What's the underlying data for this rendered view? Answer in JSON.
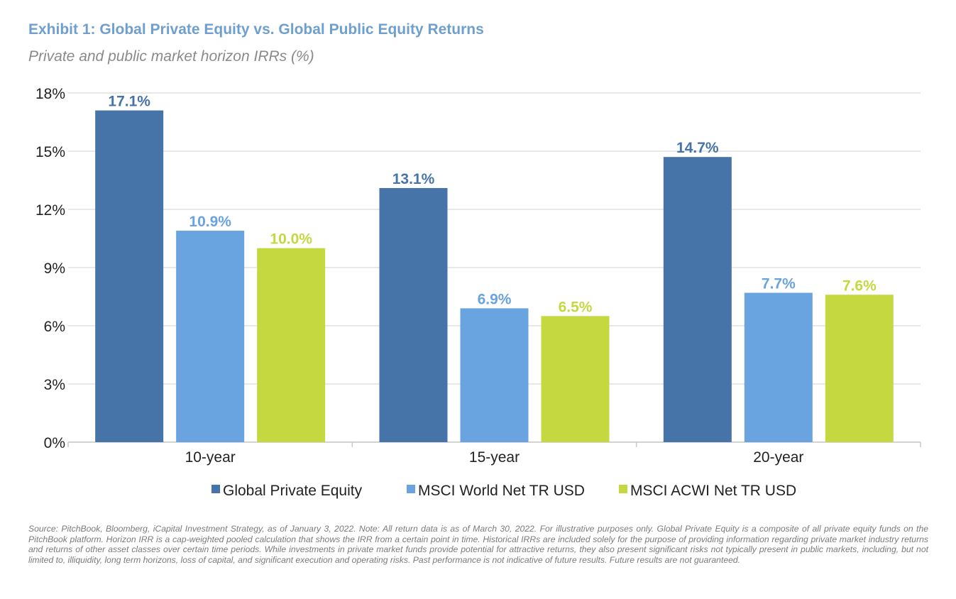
{
  "colors": {
    "title": "#6f9fcf",
    "series": [
      "#4674a8",
      "#69a3e0",
      "#c5d83f"
    ],
    "grid": "#d9d9d9",
    "axis_text": "#222222"
  },
  "chart_data": {
    "type": "bar",
    "title": "Exhibit 1: Global Private Equity vs. Global Public Equity Returns",
    "subtitle": "Private and public market horizon IRRs (%)",
    "xlabel": "",
    "ylabel": "",
    "categories": [
      "10-year",
      "15-year",
      "20-year"
    ],
    "series": [
      {
        "name": "Global Private Equity",
        "values": [
          17.1,
          13.1,
          14.7
        ],
        "labels": [
          "17.1%",
          "13.1%",
          "14.7%"
        ]
      },
      {
        "name": "MSCI World Net TR USD",
        "values": [
          10.9,
          6.9,
          7.7
        ],
        "labels": [
          "10.9%",
          "6.9%",
          "7.7%"
        ]
      },
      {
        "name": "MSCI ACWI Net TR USD",
        "values": [
          10.0,
          6.5,
          7.6
        ],
        "labels": [
          "10.0%",
          "6.5%",
          "7.6%"
        ]
      }
    ],
    "ylim": [
      0,
      18
    ],
    "yticks": [
      0,
      3,
      6,
      9,
      12,
      15,
      18
    ],
    "ytick_labels": [
      "0%",
      "3%",
      "6%",
      "9%",
      "12%",
      "15%",
      "18%"
    ],
    "grid": true,
    "legend": "bottom"
  },
  "footnote": "Source: PitchBook, Bloomberg, iCapital Investment Strategy, as of January 3, 2022. Note: All  return data is as of March 30, 2022. For illustrative purposes only. Global Private Equity is a composite of all private equity funds on the PitchBook platform. Horizon IRR is a cap-weighted pooled calculation that shows the IRR from a certain point in time. Historical IRRs are included solely for the purpose of providing information regarding private market industry returns and returns of other asset classes over certain time periods. While investments in private market funds provide potential for attractive returns, they also present significant risks not typically present in public markets, including, but not limited to, illiquidity, long term horizons, loss of capital, and significant execution and operating risks. Past performance is not indicative of future results. Future results are not guaranteed."
}
